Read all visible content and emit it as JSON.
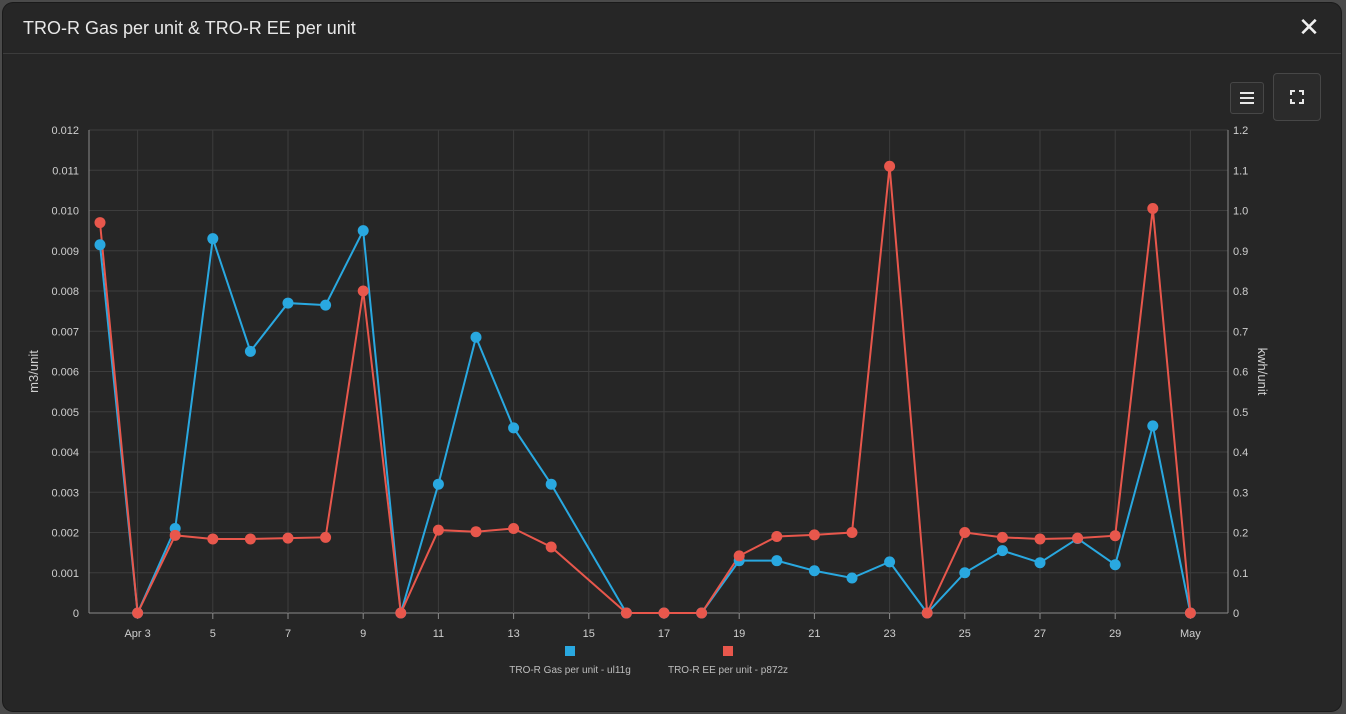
{
  "dialog": {
    "title": "TRO-R Gas per unit & TRO-R EE per unit",
    "close_icon": "close-icon",
    "menu_icon": "hamburger-menu-icon",
    "fullscreen_icon": "fullscreen-icon"
  },
  "chart_data": {
    "type": "line",
    "x_tick_labels": [
      "Apr 3",
      "5",
      "7",
      "9",
      "11",
      "13",
      "15",
      "17",
      "19",
      "21",
      "23",
      "25",
      "27",
      "29",
      "May"
    ],
    "ylabel_left": "m3/unit",
    "ylabel_right": "kwh/unit",
    "y_left_ticks": [
      "0",
      "0.001",
      "0.002",
      "0.003",
      "0.004",
      "0.005",
      "0.006",
      "0.007",
      "0.008",
      "0.009",
      "0.010",
      "0.011",
      "0.012"
    ],
    "y_right_ticks": [
      "0",
      "0.1",
      "0.2",
      "0.3",
      "0.4",
      "0.5",
      "0.6",
      "0.7",
      "0.8",
      "0.9",
      "1.0",
      "1.1",
      "1.2"
    ],
    "ylim_left": [
      0,
      0.012
    ],
    "ylim_right": [
      0,
      1.2
    ],
    "grid": true,
    "legend_position": "bottom-center",
    "x": [
      "Apr 2",
      "Apr 3",
      "Apr 4",
      "Apr 5",
      "Apr 6",
      "Apr 7",
      "Apr 8",
      "Apr 9",
      "Apr 10",
      "Apr 11",
      "Apr 12",
      "Apr 13",
      "Apr 14",
      "Apr 16",
      "Apr 17",
      "Apr 18",
      "Apr 19",
      "Apr 20",
      "Apr 21",
      "Apr 22",
      "Apr 23",
      "Apr 24",
      "Apr 25",
      "Apr 26",
      "Apr 27",
      "Apr 28",
      "Apr 29",
      "Apr 30",
      "May 1"
    ],
    "series": [
      {
        "name": "TRO-R Gas per unit - ul11g",
        "axis": "left",
        "color": "#29a8e0",
        "values": [
          0.00915,
          0,
          0.0021,
          0.0093,
          0.0065,
          0.0077,
          0.00765,
          0.0095,
          0,
          0.0032,
          0.00685,
          0.0046,
          0.0032,
          0,
          0,
          0,
          0.0013,
          0.0013,
          0.00105,
          0.00087,
          0.00127,
          0,
          0.001,
          0.00155,
          0.00125,
          0.00185,
          0.0012,
          0.00465,
          0
        ]
      },
      {
        "name": "TRO-R EE per unit - p872z",
        "axis": "right",
        "color": "#e8574c",
        "values": [
          0.97,
          0,
          0.193,
          0.184,
          0.184,
          0.186,
          0.188,
          0.8,
          0,
          0.206,
          0.202,
          0.21,
          0.164,
          0,
          0,
          0,
          0.142,
          0.19,
          0.194,
          0.2,
          1.11,
          0,
          0.2,
          0.188,
          0.184,
          0.186,
          0.192,
          1.005,
          0
        ]
      }
    ]
  }
}
